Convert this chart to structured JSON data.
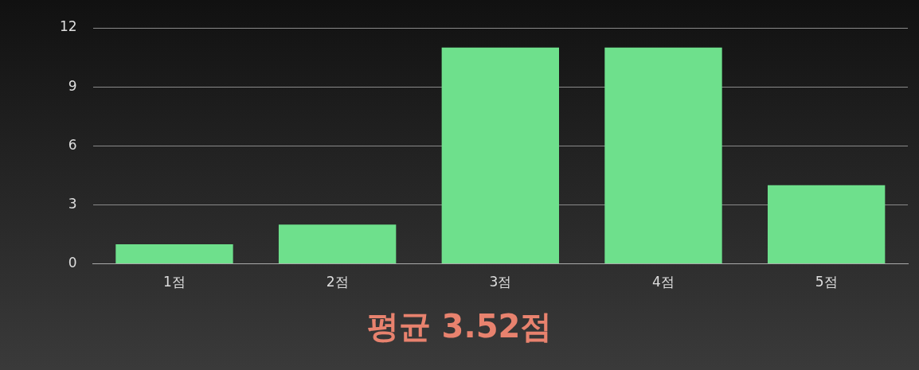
{
  "chart_data": {
    "type": "bar",
    "categories": [
      "1점",
      "2점",
      "3점",
      "4점",
      "5점"
    ],
    "values": [
      1,
      2,
      11,
      11,
      4
    ],
    "color": "#6ee08c",
    "ylim": [
      0,
      12
    ],
    "yticks": [
      0,
      3,
      6,
      9,
      12
    ],
    "grid": "y",
    "legend": false,
    "annotations": [
      "평균 3.52점"
    ]
  }
}
